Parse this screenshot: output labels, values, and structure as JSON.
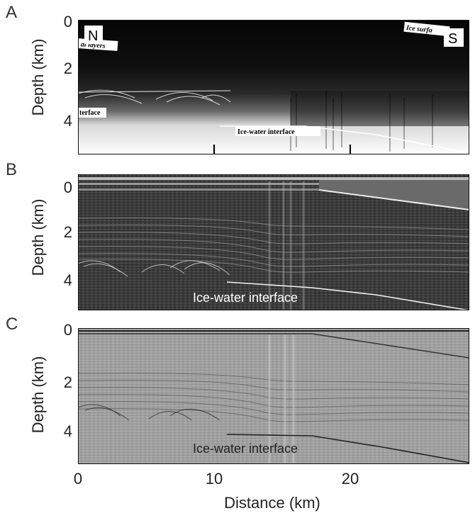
{
  "panels": [
    {
      "letter": "A",
      "ylabel": "Depth (km)",
      "yticks": [
        "0",
        "2",
        "4"
      ],
      "corner_labels": {
        "left": "N",
        "right": "S"
      },
      "annotations": [
        "Ice surfa",
        "al layers",
        "terface",
        "Ice-water interface"
      ]
    },
    {
      "letter": "B",
      "ylabel": "Depth (km)",
      "yticks": [
        "0",
        "2",
        "4"
      ],
      "annotation": "Ice-water interface"
    },
    {
      "letter": "C",
      "ylabel": "Depth (km)",
      "yticks": [
        "0",
        "2",
        "4"
      ],
      "annotation": "Ice-water interface"
    }
  ],
  "xaxis": {
    "label": "Distance (km)",
    "ticks": [
      "0",
      "10",
      "20"
    ]
  },
  "colors": {
    "panel_a_bg": "#0d0d0d",
    "panel_b_bg": "#3a3a3a",
    "panel_c_bg": "#9a9a9a"
  }
}
